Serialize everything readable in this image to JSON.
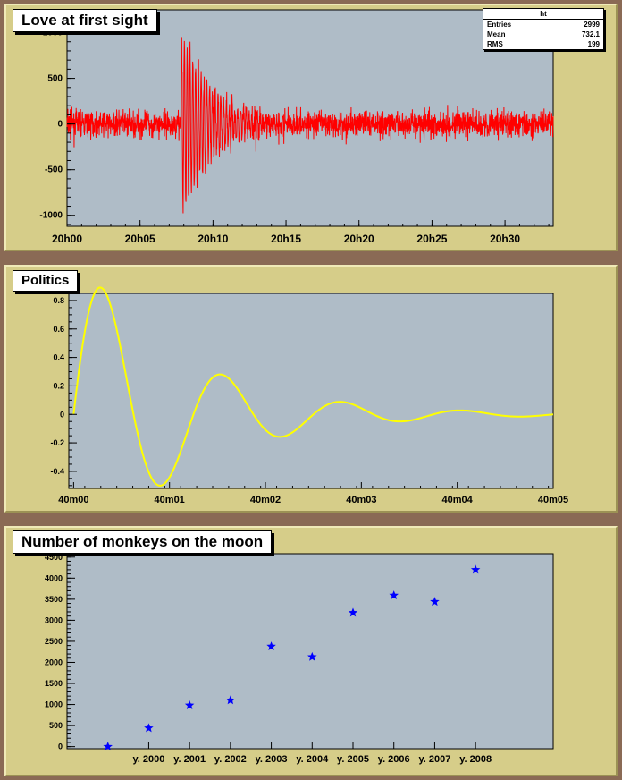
{
  "charts": {
    "top": {
      "title": "Love at first sight",
      "stats": {
        "name": "ht",
        "rows": [
          {
            "label": "Entries",
            "value": "2999"
          },
          {
            "label": "Mean",
            "value": "732.1"
          },
          {
            "label": "RMS",
            "value": "199"
          }
        ]
      }
    },
    "middle": {
      "title": "Politics"
    },
    "bottom": {
      "title": "Number of monkeys on the moon"
    }
  },
  "colors": {
    "frame": "#d6cd89",
    "plot_bg": "#afbcc7",
    "border": "#8a6a55",
    "line_red": "#ff0000",
    "line_yellow": "#ffff00",
    "marker_blue": "#0000ff"
  },
  "chart_data": [
    {
      "type": "line",
      "title": "Love at first sight",
      "xlabel": "",
      "ylabel": "",
      "x_time_unit": "minutes",
      "xlim": [
        0,
        33.3
      ],
      "ylim": [
        -1120,
        1250
      ],
      "x_ticks": [
        {
          "value": 0,
          "label": "20h00"
        },
        {
          "value": 5,
          "label": "20h05"
        },
        {
          "value": 10,
          "label": "20h10"
        },
        {
          "value": 15,
          "label": "20h15"
        },
        {
          "value": 20,
          "label": "20h20"
        },
        {
          "value": 25,
          "label": "20h25"
        },
        {
          "value": 30,
          "label": "20h30"
        }
      ],
      "y_ticks": [
        {
          "value": 1000,
          "label": "1000"
        },
        {
          "value": 500,
          "label": "500"
        },
        {
          "value": 0,
          "label": "0"
        },
        {
          "value": -500,
          "label": "-500"
        },
        {
          "value": -1000,
          "label": "-1000"
        }
      ],
      "grid": false,
      "series": [
        {
          "color": "#ff0000",
          "description_points": [
            {
              "x": 0,
              "y_range": [
                -300,
                300
              ]
            },
            {
              "x": 7.8,
              "y_range": [
                -1080,
                1130
              ],
              "note": "burst onset"
            },
            {
              "x": 10,
              "y_range": [
                -800,
                850
              ]
            },
            {
              "x": 13,
              "y_range": [
                -450,
                450
              ]
            },
            {
              "x": 33.3,
              "y_range": [
                -300,
                300
              ]
            }
          ]
        }
      ]
    },
    {
      "type": "line",
      "title": "Politics",
      "xlabel": "",
      "ylabel": "",
      "x_time_unit": "seconds",
      "xlim": [
        -3,
        300
      ],
      "ylim": [
        -0.52,
        0.85
      ],
      "x_ticks": [
        {
          "value": 0,
          "label": "40m00"
        },
        {
          "value": 60,
          "label": "40m01"
        },
        {
          "value": 120,
          "label": "40m02"
        },
        {
          "value": 180,
          "label": "40m03"
        },
        {
          "value": 240,
          "label": "40m04"
        },
        {
          "value": 300,
          "label": "40m05"
        }
      ],
      "y_ticks": [
        {
          "value": 0.8,
          "label": "0.8"
        },
        {
          "value": 0.6,
          "label": "0.6"
        },
        {
          "value": 0.4,
          "label": "0.4"
        },
        {
          "value": 0.2,
          "label": "0.2"
        },
        {
          "value": 0,
          "label": "0"
        },
        {
          "value": -0.2,
          "label": "-0.2"
        },
        {
          "value": -0.4,
          "label": "-0.4"
        }
      ],
      "grid": false,
      "series": [
        {
          "color": "#ffff00",
          "function": "damped sine",
          "x": [
            0,
            17,
            54,
            93,
            131,
            168,
            207,
            244,
            281,
            300
          ],
          "y": [
            0,
            0.74,
            -0.4,
            0.21,
            -0.12,
            0.06,
            -0.035,
            0.015,
            -0.008,
            0
          ]
        }
      ]
    },
    {
      "type": "scatter",
      "title": "Number of monkeys on the moon",
      "xlabel": "",
      "ylabel": "",
      "xlim": [
        1998.0,
        2009.9
      ],
      "ylim": [
        -50,
        4580
      ],
      "x_ticks": [
        {
          "value": 2000,
          "label": "y. 2000"
        },
        {
          "value": 2001,
          "label": "y. 2001"
        },
        {
          "value": 2002,
          "label": "y. 2002"
        },
        {
          "value": 2003,
          "label": "y. 2003"
        },
        {
          "value": 2004,
          "label": "y. 2004"
        },
        {
          "value": 2005,
          "label": "y. 2005"
        },
        {
          "value": 2006,
          "label": "y. 2006"
        },
        {
          "value": 2007,
          "label": "y. 2007"
        },
        {
          "value": 2008,
          "label": "y. 2008"
        }
      ],
      "y_ticks": [
        {
          "value": 0,
          "label": "0"
        },
        {
          "value": 500,
          "label": "500"
        },
        {
          "value": 1000,
          "label": "1000"
        },
        {
          "value": 1500,
          "label": "1500"
        },
        {
          "value": 2000,
          "label": "2000"
        },
        {
          "value": 2500,
          "label": "2500"
        },
        {
          "value": 3000,
          "label": "3000"
        },
        {
          "value": 3500,
          "label": "3500"
        },
        {
          "value": 4000,
          "label": "4000"
        },
        {
          "value": 4500,
          "label": "4500"
        }
      ],
      "grid": false,
      "series": [
        {
          "color": "#0000ff",
          "marker": "star",
          "x": [
            1999,
            2000,
            2001,
            2002,
            2003,
            2004,
            2005,
            2006,
            2007,
            2008
          ],
          "y": [
            0,
            440,
            980,
            1100,
            2380,
            2130,
            3180,
            3590,
            3440,
            4200
          ]
        }
      ]
    }
  ]
}
